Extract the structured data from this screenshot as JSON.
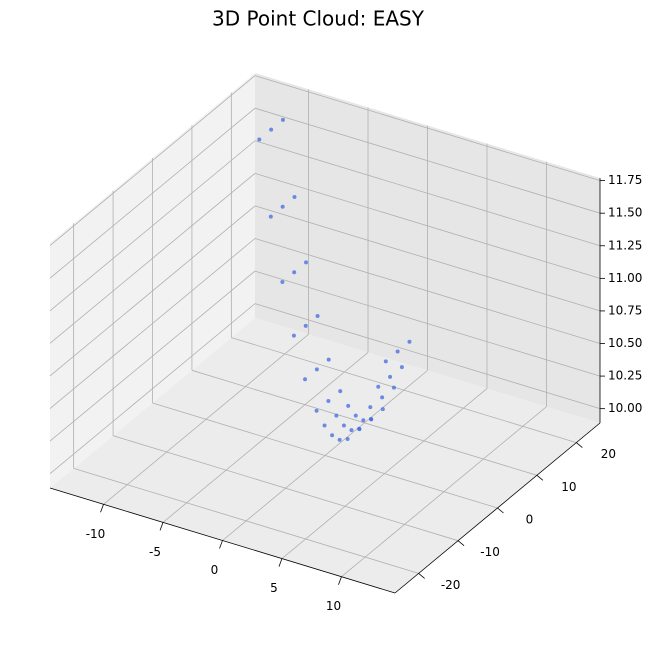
{
  "chart_data": {
    "type": "scatter3d",
    "title": "3D Point Cloud: EASY",
    "color": "#4169e1",
    "grid": true,
    "x": [
      -9.5,
      -8,
      -6.5,
      -5,
      -3.5,
      -2,
      -1,
      0,
      1,
      2,
      3.5,
      5,
      6,
      7,
      -9.5,
      -8,
      -6.5,
      -5,
      -3.5,
      -2,
      -1,
      0,
      1,
      2,
      3.5,
      5,
      6,
      7,
      -9.5,
      -8,
      -6.5,
      -5,
      -3.5,
      -2,
      -1,
      0,
      1,
      2,
      3.5,
      5,
      6,
      7
    ],
    "y": [
      12.0,
      10.4,
      8.8,
      7.2,
      5.5,
      3.9,
      2.9,
      1.8,
      0.7,
      -0.3,
      -1.9,
      -3.6,
      -4.6,
      -5.7,
      15.0,
      13.4,
      11.8,
      10.2,
      8.5,
      6.9,
      5.9,
      4.8,
      3.7,
      2.7,
      1.1,
      -0.6,
      -1.6,
      -2.7,
      18.0,
      16.4,
      14.8,
      13.2,
      11.5,
      9.9,
      8.9,
      7.8,
      6.7,
      5.7,
      4.1,
      2.4,
      1.4,
      0.3
    ],
    "z": [
      11.75,
      11.24,
      10.82,
      10.49,
      10.24,
      10.08,
      10.02,
      10.0,
      10.02,
      10.08,
      10.24,
      10.49,
      10.7,
      10.95,
      11.75,
      11.24,
      10.82,
      10.49,
      10.24,
      10.08,
      10.02,
      10.0,
      10.02,
      10.08,
      10.24,
      10.49,
      10.7,
      10.95,
      11.75,
      11.24,
      10.82,
      10.49,
      10.24,
      10.08,
      10.02,
      10.0,
      10.02,
      10.08,
      10.24,
      10.49,
      10.7,
      10.95
    ],
    "xlim": [
      -14.5,
      14.5
    ],
    "ylim": [
      -26,
      26
    ],
    "zlim": [
      9.89,
      11.77
    ],
    "xticks": [
      -10,
      -5,
      0,
      5,
      10
    ],
    "yticks": [
      -20,
      -10,
      0,
      10,
      20
    ],
    "zticks": [
      {
        "value": 10,
        "label": "10.00"
      },
      {
        "value": 10.25,
        "label": "10.25"
      },
      {
        "value": 10.5,
        "label": "10.50"
      },
      {
        "value": 10.75,
        "label": "10.75"
      },
      {
        "value": 11,
        "label": "11.00"
      },
      {
        "value": 11.25,
        "label": "11.25"
      },
      {
        "value": 11.5,
        "label": "11.50"
      },
      {
        "value": 11.75,
        "label": "11.75"
      }
    ]
  }
}
